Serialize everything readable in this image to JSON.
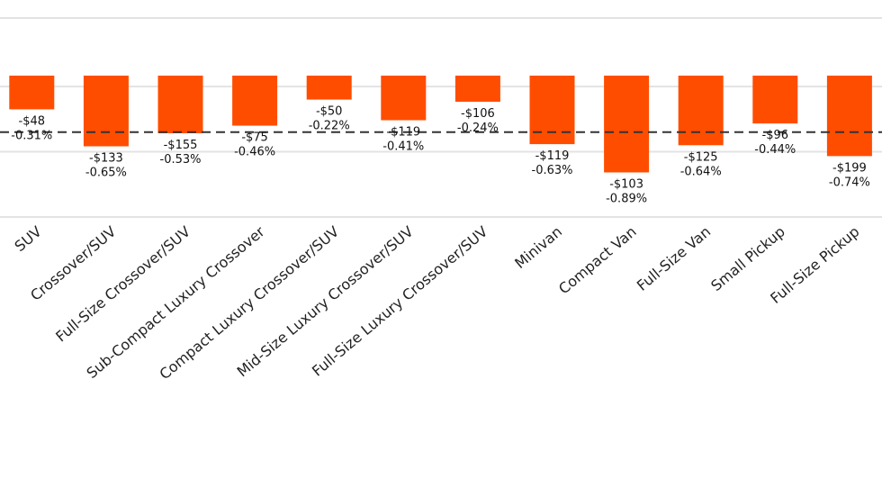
{
  "chart_data": {
    "type": "bar",
    "categories": [
      "SUV",
      "Crossover/SUV",
      "Full-Size Crossover/SUV",
      "Sub-Compact Luxury Crossover",
      "Compact Luxury Crossover/SUV",
      "Mid-Size Luxury Crossover/SUV",
      "Full-Size Luxury Crossover/SUV",
      "Minivan",
      "Compact Van",
      "Full-Size Van",
      "Small Pickup",
      "Full-Size Pickup"
    ],
    "values": [
      -0.31,
      -0.65,
      -0.53,
      -0.46,
      -0.22,
      -0.41,
      -0.24,
      -0.63,
      -0.89,
      -0.64,
      -0.44,
      -0.74
    ],
    "value_labels": [
      "-0.31%",
      "-0.65%",
      "-0.53%",
      "-0.46%",
      "-0.22%",
      "-0.41%",
      "-0.24%",
      "-0.63%",
      "-0.89%",
      "-0.64%",
      "-0.44%",
      "-0.74%"
    ],
    "dollar_labels": [
      "-$48",
      "-$133",
      "-$155",
      "-$75",
      "-$50",
      "-$119",
      "-$106",
      "-$119",
      "-$103",
      "-$125",
      "-$96",
      "-$199"
    ],
    "color": "#ff4d00",
    "reference_line": -0.52,
    "ylim": [
      -1.3,
      0.53
    ],
    "yticks": [
      -1.3,
      -0.7,
      -0.1,
      0.53
    ],
    "grid": true
  }
}
